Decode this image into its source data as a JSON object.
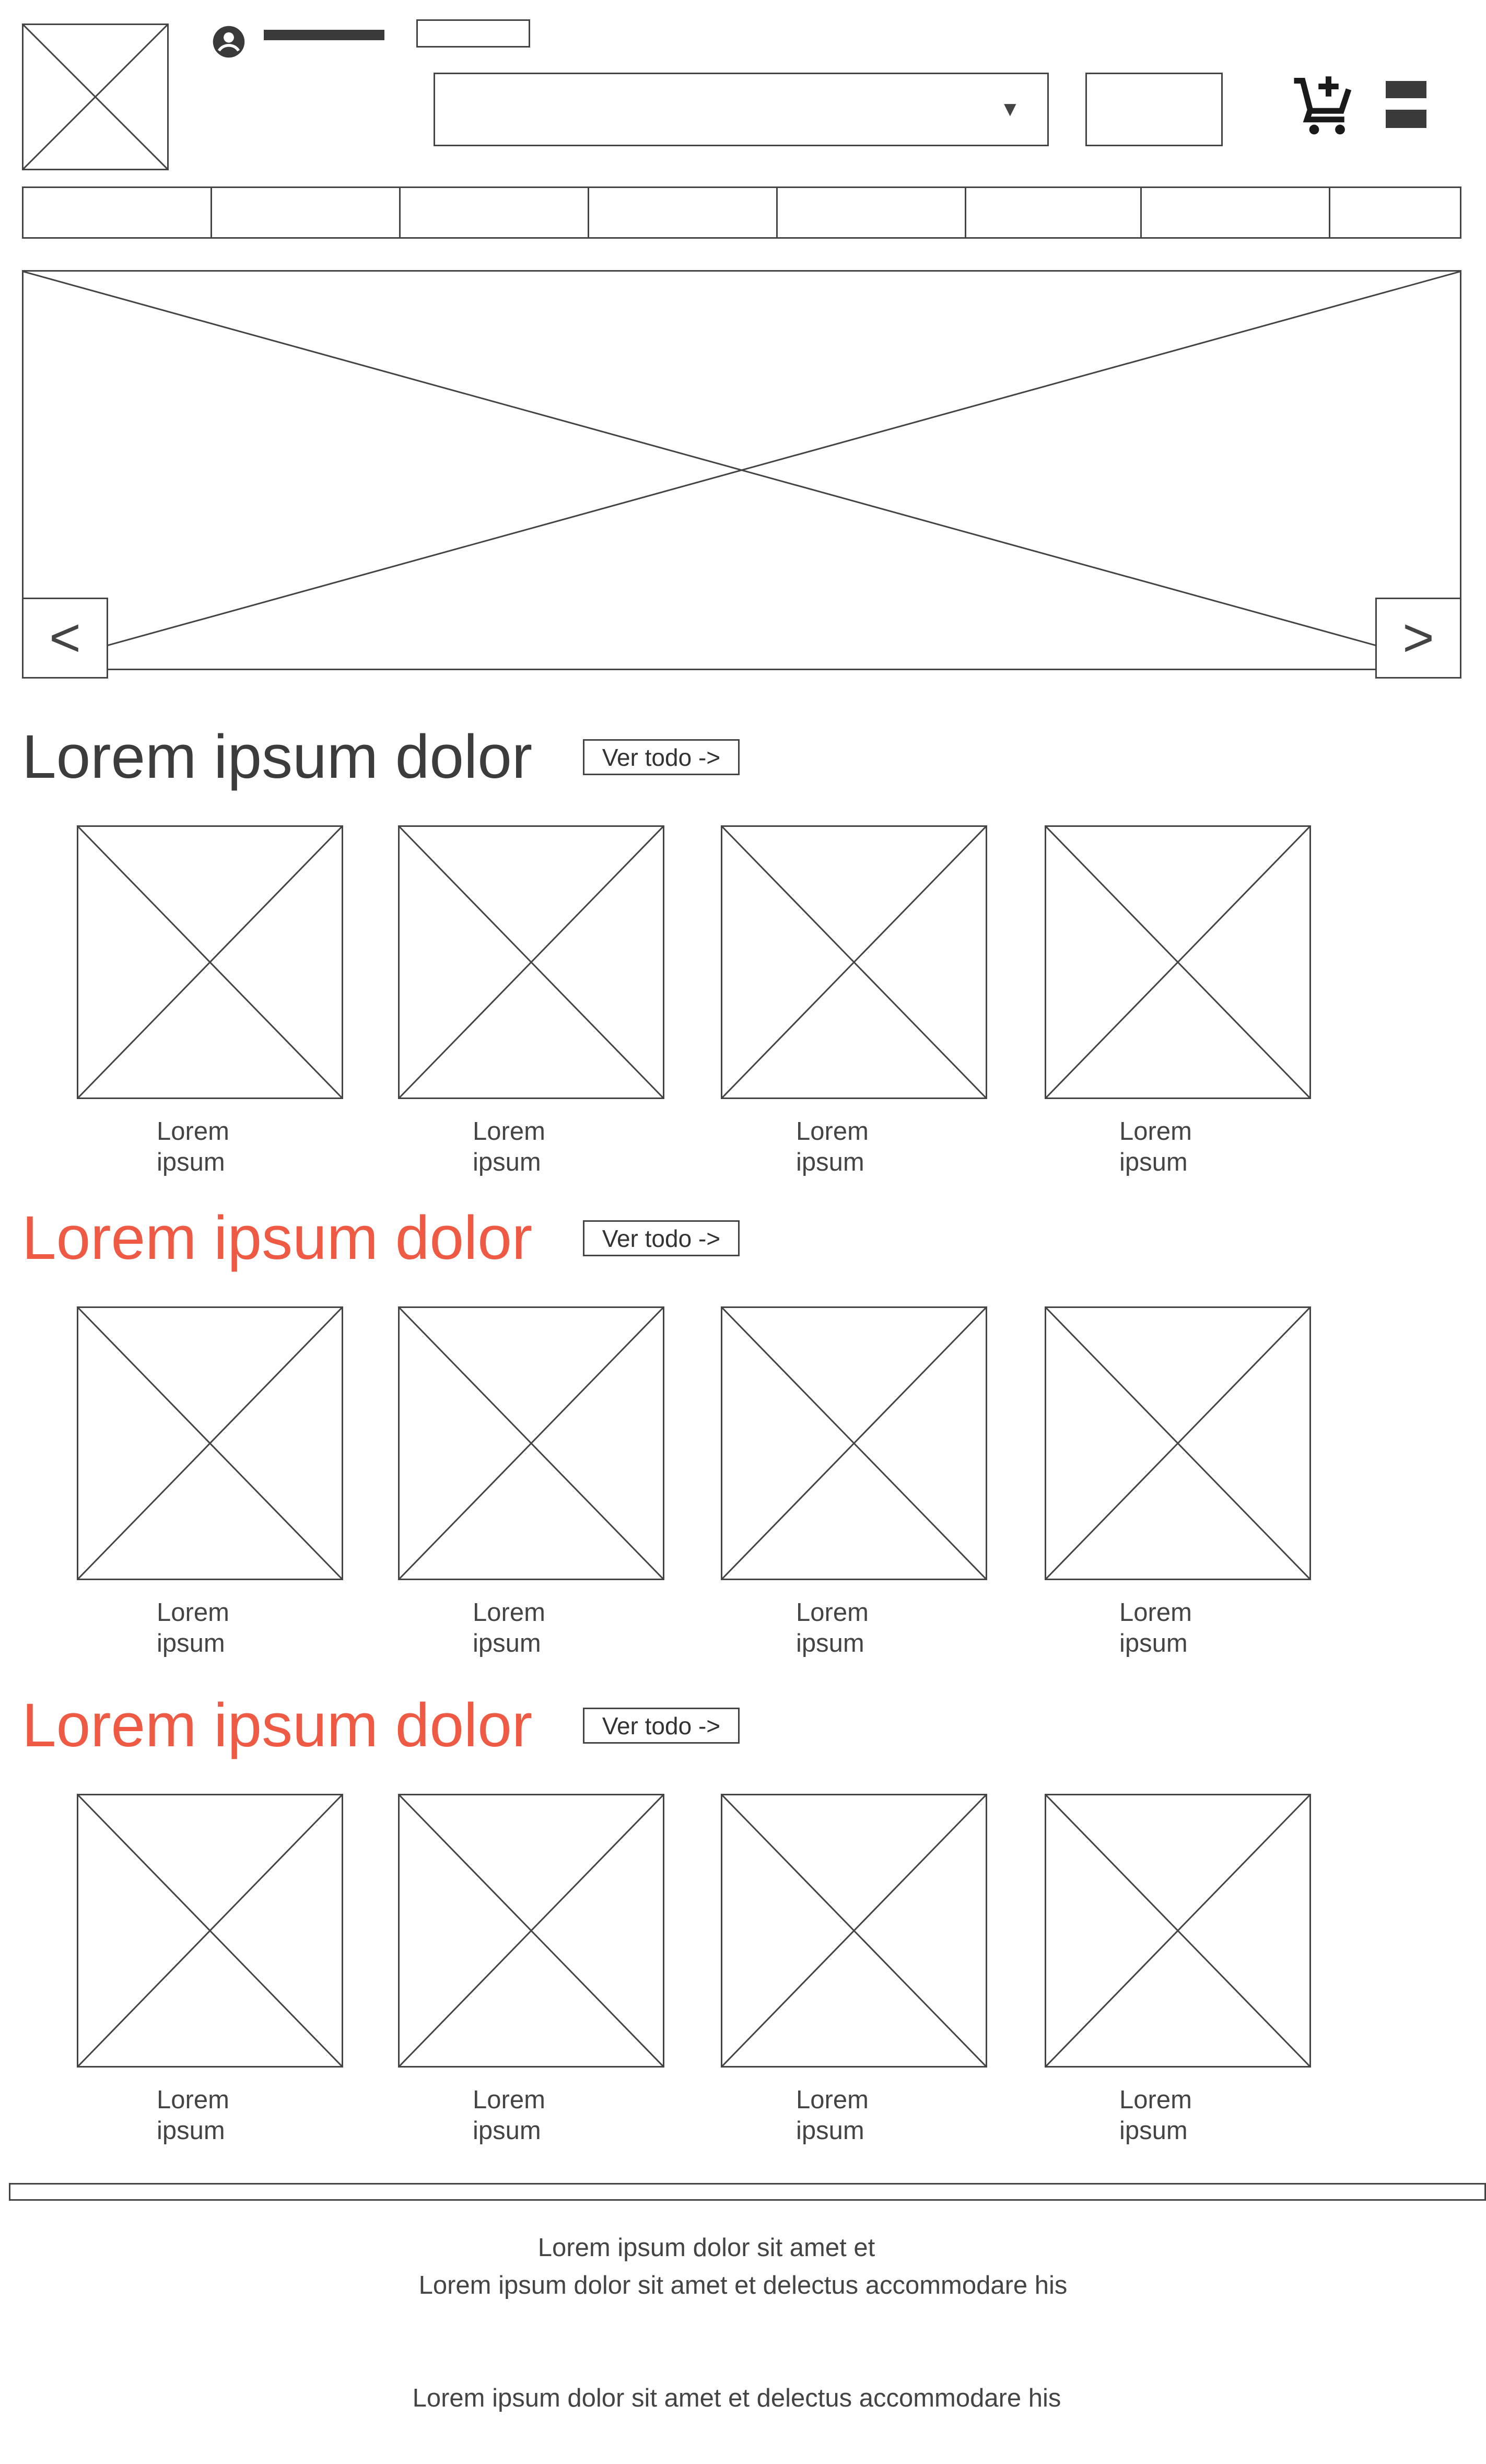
{
  "header": {
    "logo": "image-placeholder",
    "user_icon": "user-circle-icon",
    "category_select": {
      "value": "",
      "arrow": "▼"
    },
    "cart_icon": "cart-add-icon",
    "menu_icon": "menu-icon"
  },
  "nav": {
    "tab_count": 8
  },
  "carousel": {
    "prev_label": "<",
    "next_label": ">"
  },
  "sections": [
    {
      "title": "Lorem ipsum dolor",
      "title_color": "#3c3c3c",
      "button": "Ver todo ->",
      "products": [
        {
          "line1": "Lorem",
          "line2": "ipsum"
        },
        {
          "line1": "Lorem",
          "line2": "ipsum"
        },
        {
          "line1": "Lorem",
          "line2": "ipsum"
        },
        {
          "line1": "Lorem",
          "line2": "ipsum"
        }
      ]
    },
    {
      "title": "Lorem ipsum dolor",
      "title_color": "#ef5a45",
      "button": "Ver todo ->",
      "products": [
        {
          "line1": "Lorem",
          "line2": "ipsum"
        },
        {
          "line1": "Lorem",
          "line2": "ipsum"
        },
        {
          "line1": "Lorem",
          "line2": "ipsum"
        },
        {
          "line1": "Lorem",
          "line2": "ipsum"
        }
      ]
    },
    {
      "title": "Lorem ipsum dolor",
      "title_color": "#ef5a45",
      "button": "Ver todo ->",
      "products": [
        {
          "line1": "Lorem",
          "line2": "ipsum"
        },
        {
          "line1": "Lorem",
          "line2": "ipsum"
        },
        {
          "line1": "Lorem",
          "line2": "ipsum"
        },
        {
          "line1": "Lorem",
          "line2": "ipsum"
        }
      ]
    }
  ],
  "footer": {
    "line1": "Lorem ipsum dolor sit amet et",
    "line2": "Lorem ipsum dolor sit amet et delectus accommodare his",
    "line3": "Lorem ipsum dolor sit amet et delectus accommodare his"
  }
}
